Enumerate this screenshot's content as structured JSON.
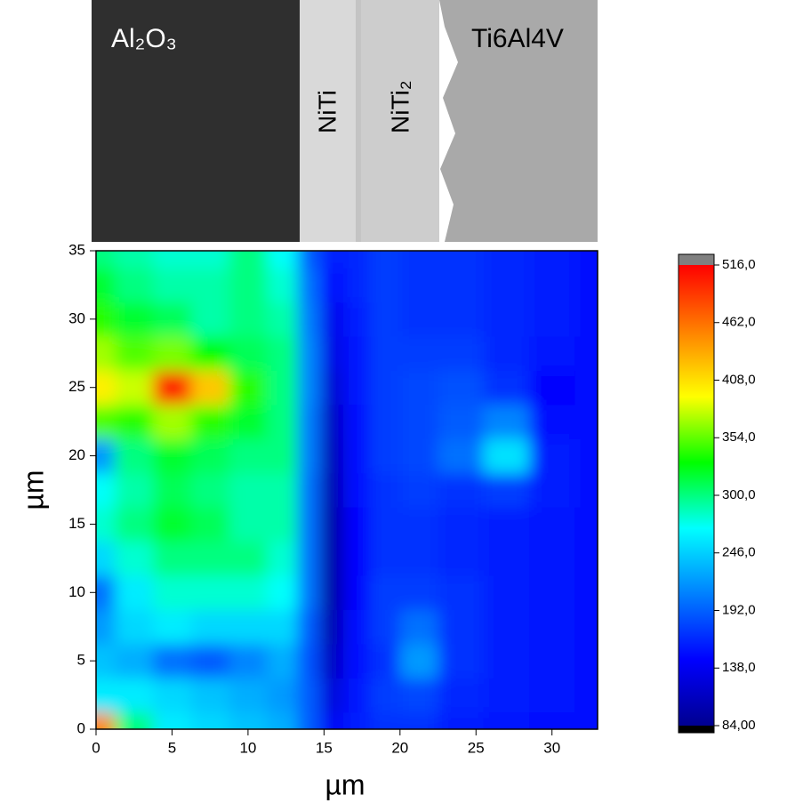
{
  "image_labels": [
    "Al₂O₃",
    "NiTi",
    "NiTi₂",
    "Ti6Al4V"
  ],
  "chart_data": {
    "type": "contour",
    "xlabel": "µm",
    "ylabel": "µm",
    "x": [
      0,
      2.5,
      5,
      7.5,
      10,
      12.5,
      14,
      15.5,
      17,
      19,
      21,
      24,
      27,
      30,
      33
    ],
    "y": [
      0,
      2.5,
      5,
      7.5,
      10,
      12.5,
      15,
      17.5,
      20,
      22.5,
      25,
      27.5,
      30,
      32.5,
      35
    ],
    "z": [
      [
        450,
        300,
        260,
        250,
        240,
        230,
        190,
        140,
        160,
        170,
        170,
        160,
        155,
        150,
        150
      ],
      [
        260,
        260,
        250,
        240,
        230,
        220,
        190,
        125,
        155,
        175,
        180,
        165,
        160,
        155,
        150
      ],
      [
        240,
        230,
        200,
        190,
        210,
        230,
        185,
        110,
        150,
        170,
        220,
        170,
        160,
        155,
        150
      ],
      [
        220,
        250,
        260,
        250,
        250,
        250,
        190,
        100,
        150,
        175,
        200,
        170,
        160,
        155,
        150
      ],
      [
        200,
        260,
        280,
        280,
        280,
        270,
        200,
        95,
        145,
        175,
        175,
        170,
        160,
        155,
        150
      ],
      [
        250,
        280,
        300,
        300,
        300,
        280,
        200,
        95,
        145,
        170,
        170,
        165,
        160,
        155,
        150
      ],
      [
        280,
        300,
        320,
        310,
        290,
        290,
        200,
        95,
        145,
        170,
        170,
        165,
        160,
        155,
        150
      ],
      [
        270,
        290,
        310,
        300,
        290,
        290,
        200,
        100,
        150,
        170,
        175,
        170,
        175,
        160,
        150
      ],
      [
        220,
        300,
        320,
        310,
        300,
        300,
        205,
        105,
        150,
        175,
        180,
        200,
        255,
        160,
        150
      ],
      [
        350,
        340,
        370,
        340,
        320,
        300,
        205,
        110,
        150,
        175,
        180,
        190,
        210,
        150,
        150
      ],
      [
        400,
        380,
        500,
        420,
        340,
        300,
        210,
        120,
        155,
        175,
        180,
        185,
        170,
        145,
        150
      ],
      [
        370,
        350,
        360,
        330,
        310,
        300,
        210,
        130,
        155,
        175,
        175,
        175,
        165,
        155,
        150
      ],
      [
        340,
        320,
        310,
        290,
        300,
        290,
        205,
        135,
        160,
        175,
        170,
        170,
        165,
        160,
        150
      ],
      [
        320,
        300,
        290,
        290,
        300,
        280,
        200,
        145,
        165,
        175,
        170,
        170,
        165,
        160,
        150
      ],
      [
        300,
        290,
        280,
        280,
        300,
        270,
        190,
        160,
        165,
        175,
        170,
        170,
        165,
        160,
        150
      ]
    ],
    "xlim": [
      0,
      33
    ],
    "ylim": [
      0,
      35
    ],
    "xticks": [
      0,
      5,
      10,
      15,
      20,
      25,
      30
    ],
    "yticks": [
      0,
      5,
      10,
      15,
      20,
      25,
      30,
      35
    ],
    "clim": [
      84,
      516
    ],
    "cticks": [
      {
        "value": 84,
        "label": "84,00"
      },
      {
        "value": 138,
        "label": "138,0"
      },
      {
        "value": 192,
        "label": "192,0"
      },
      {
        "value": 246,
        "label": "246,0"
      },
      {
        "value": 300,
        "label": "300,0"
      },
      {
        "value": 354,
        "label": "354,0"
      },
      {
        "value": 408,
        "label": "408,0"
      },
      {
        "value": 462,
        "label": "462,0"
      },
      {
        "value": 516,
        "label": "516,0"
      }
    ],
    "colormap": [
      "#000090",
      "#0000ff",
      "#0080ff",
      "#00ffff",
      "#00ff00",
      "#ffff00",
      "#ff8000",
      "#ff0000"
    ],
    "under_color": "#000000",
    "over_color": "#808080"
  }
}
